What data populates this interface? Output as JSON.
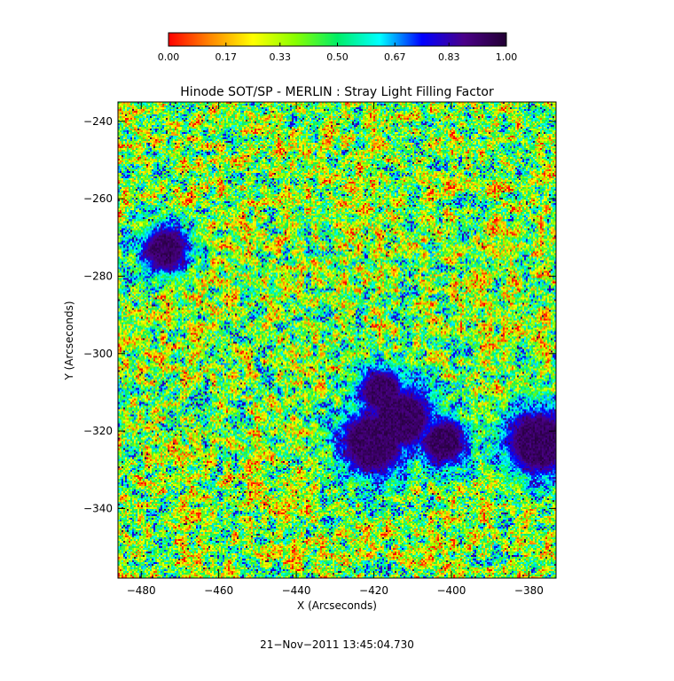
{
  "chart_data": {
    "type": "heatmap",
    "title": "Hinode SOT/SP - MERLIN : Stray Light Filling Factor",
    "xlabel": "X (Arcseconds)",
    "ylabel": "Y (Arcseconds)",
    "xlim": [
      -486,
      -373
    ],
    "ylim": [
      -358,
      -235
    ],
    "x_ticks": [
      -480,
      -460,
      -440,
      -420,
      -400,
      -380
    ],
    "x_tick_labels": [
      "−480",
      "−460",
      "−440",
      "−420",
      "−400",
      "−380"
    ],
    "y_ticks": [
      -240,
      -260,
      -280,
      -300,
      -320,
      -340
    ],
    "y_tick_labels": [
      "−240",
      "−260",
      "−280",
      "−300",
      "−320",
      "−340"
    ],
    "colorbar": {
      "range": [
        0,
        1
      ],
      "ticks": [
        0.0,
        0.17,
        0.33,
        0.5,
        0.67,
        0.83,
        1.0
      ],
      "tick_labels": [
        "0.00",
        "0.17",
        "0.33",
        "0.50",
        "0.67",
        "0.83",
        "1.00"
      ],
      "colormap": [
        "#ff0000",
        "#ff8800",
        "#ffff00",
        "#88ff00",
        "#00ee66",
        "#00ffff",
        "#0000ff",
        "#4a0088",
        "#220033"
      ]
    },
    "features": {
      "background_level": 0.4,
      "dark_regions": [
        {
          "x": -420,
          "y": -323,
          "level": 0.97
        },
        {
          "x": -413,
          "y": -317,
          "level": 0.95
        },
        {
          "x": -402,
          "y": -323,
          "level": 0.92
        },
        {
          "x": -377,
          "y": -323,
          "level": 0.97
        },
        {
          "x": -418,
          "y": -310,
          "level": 0.9
        },
        {
          "x": -474,
          "y": -273,
          "level": 0.9
        }
      ]
    },
    "timestamp": "21−Nov−2011 13:45:04.730"
  }
}
